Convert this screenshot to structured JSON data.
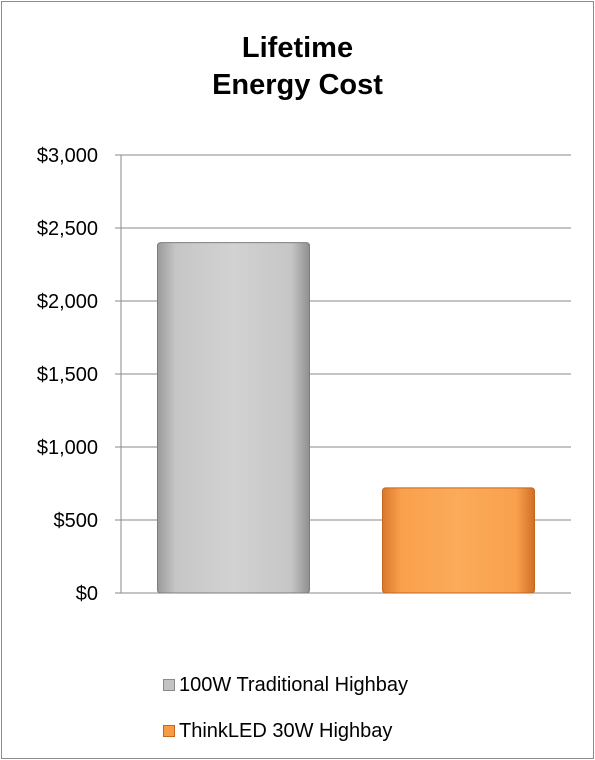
{
  "chart_data": {
    "type": "bar",
    "title_lines": [
      "Lifetime",
      "Energy Cost"
    ],
    "categories": [
      "100W Traditional Highbay",
      "ThinkLED 30W Highbay"
    ],
    "values": [
      2400,
      720
    ],
    "colors": [
      "#c0c0c0",
      "#f79b45"
    ],
    "ylim": [
      0,
      3000
    ],
    "yticks": [
      0,
      500,
      1000,
      1500,
      2000,
      2500,
      3000
    ],
    "ytick_labels": [
      "$0",
      "$500",
      "$1,000",
      "$1,500",
      "$2,000",
      "$2,500",
      "$3,000"
    ],
    "grid": true,
    "legend_position": "bottom"
  }
}
